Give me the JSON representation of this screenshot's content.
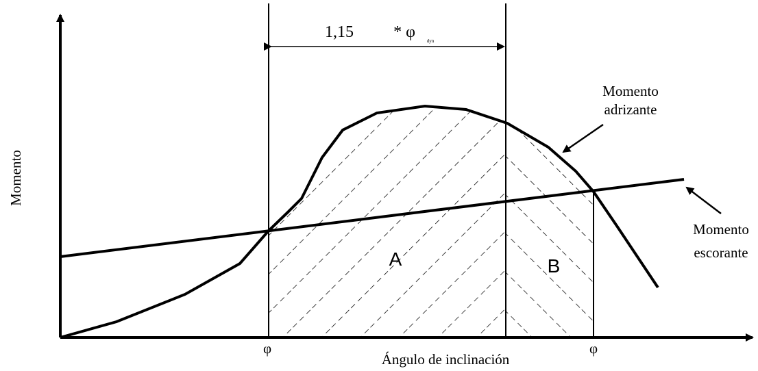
{
  "axes": {
    "y_label": "Momento",
    "x_label": "Ángulo de inclinación"
  },
  "span": {
    "factor": "1,15",
    "symbol": "* φ",
    "subscript": "dyn"
  },
  "curves": {
    "righting": [
      "Momento",
      "adrizante"
    ],
    "heeling": [
      "Momento",
      "escorante"
    ]
  },
  "areas": [
    "A",
    "B"
  ],
  "angles": [
    "φ",
    "φ"
  ]
}
